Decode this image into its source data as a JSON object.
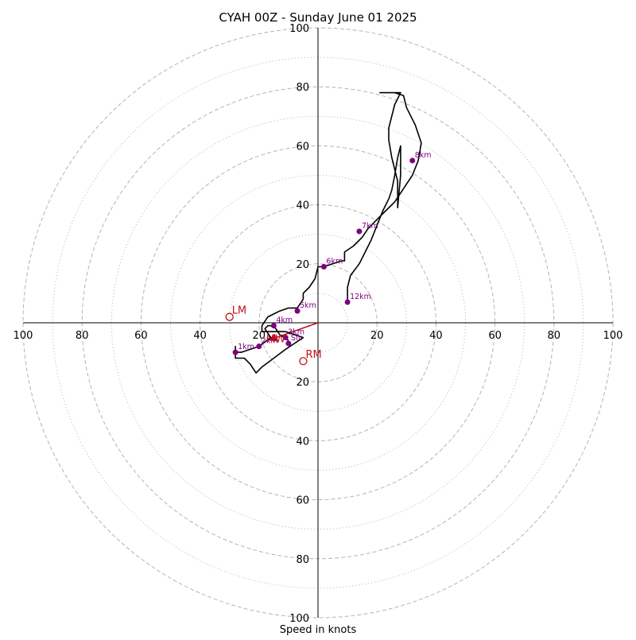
{
  "chart_data": {
    "type": "hodograph",
    "title": "CYAH 00Z - Sunday June 01 2025",
    "xlabel": "Speed in knots",
    "units": "knots",
    "range": [
      -100,
      100
    ],
    "ring_major": [
      20,
      40,
      60,
      80,
      100
    ],
    "ring_minor": [
      10,
      30,
      50,
      70,
      90
    ],
    "tick_labels": {
      "x": [
        "100",
        "80",
        "60",
        "40",
        "20",
        "20",
        "40",
        "60",
        "80",
        "100"
      ],
      "y": [
        "100",
        "80",
        "60",
        "40",
        "20",
        "20",
        "40",
        "60",
        "80",
        "100"
      ]
    },
    "grid": true,
    "colors": {
      "trace": "#000000",
      "height_marker": "#800080",
      "storm_motion": "#c0101a",
      "grid": "#b4b4b4"
    },
    "trace": [
      [
        -10,
        -6
      ],
      [
        -13,
        -4
      ],
      [
        -15,
        -1
      ],
      [
        -17,
        -1
      ],
      [
        -18,
        -2
      ],
      [
        -16,
        -5
      ],
      [
        -20,
        -8
      ],
      [
        -23,
        -9
      ],
      [
        -26,
        -10
      ],
      [
        -28,
        -10
      ],
      [
        -28,
        -8
      ],
      [
        -28,
        -12
      ],
      [
        -27,
        -12
      ],
      [
        -25,
        -12
      ],
      [
        -23,
        -14
      ],
      [
        -21,
        -17
      ],
      [
        -19,
        -15
      ],
      [
        -15,
        -12
      ],
      [
        -11,
        -9
      ],
      [
        -8,
        -7
      ],
      [
        -5,
        -5
      ],
      [
        -8,
        -4
      ],
      [
        -11,
        -3
      ],
      [
        -15,
        -3
      ],
      [
        -19,
        -3
      ],
      [
        -19,
        -1
      ],
      [
        -17,
        2
      ],
      [
        -15,
        3
      ],
      [
        -13,
        4
      ],
      [
        -10,
        5
      ],
      [
        -7,
        5
      ],
      [
        -5,
        8
      ],
      [
        -5,
        10
      ],
      [
        -3,
        12
      ],
      [
        -1,
        15
      ],
      [
        0,
        19
      ],
      [
        2,
        19
      ],
      [
        5,
        20
      ],
      [
        8,
        21
      ],
      [
        9,
        21
      ],
      [
        9,
        24
      ],
      [
        12,
        26
      ],
      [
        15,
        29
      ],
      [
        17,
        32
      ],
      [
        20,
        35
      ],
      [
        23,
        38
      ],
      [
        26,
        41
      ],
      [
        28,
        44
      ],
      [
        30,
        47
      ],
      [
        32,
        50
      ],
      [
        34,
        55
      ],
      [
        35,
        61
      ],
      [
        33,
        67
      ],
      [
        30,
        73
      ],
      [
        29,
        77
      ],
      [
        26,
        78
      ],
      [
        23,
        78
      ],
      [
        21,
        78
      ],
      [
        23,
        78
      ],
      [
        25,
        78
      ],
      [
        28,
        78
      ],
      [
        26,
        74
      ],
      [
        24,
        66
      ],
      [
        24,
        62
      ],
      [
        25,
        56
      ],
      [
        26,
        52
      ],
      [
        27,
        48
      ],
      [
        27,
        44
      ],
      [
        27,
        41
      ],
      [
        27,
        39
      ],
      [
        28,
        50
      ],
      [
        28,
        60
      ],
      [
        27,
        56
      ],
      [
        26,
        50
      ],
      [
        25,
        45
      ],
      [
        24,
        42
      ],
      [
        22,
        38
      ],
      [
        20,
        33
      ],
      [
        18,
        28
      ],
      [
        16,
        24
      ],
      [
        14,
        20
      ],
      [
        11,
        16
      ],
      [
        10,
        12
      ],
      [
        10,
        8
      ],
      [
        10,
        7
      ]
    ],
    "height_markers": [
      {
        "label": "Sfc",
        "u": -10,
        "v": -7
      },
      {
        "label": "1km",
        "u": -28,
        "v": -10
      },
      {
        "label": "2km",
        "u": -20,
        "v": -8
      },
      {
        "label": "3km",
        "u": -11,
        "v": -5
      },
      {
        "label": "4km",
        "u": -15,
        "v": -1
      },
      {
        "label": "5km",
        "u": -7,
        "v": 4
      },
      {
        "label": "6km",
        "u": 2,
        "v": 19
      },
      {
        "label": "7km",
        "u": 14,
        "v": 31
      },
      {
        "label": "8km",
        "u": 32,
        "v": 55
      },
      {
        "label": "12km",
        "u": 10,
        "v": 7
      }
    ],
    "storm_motions": [
      {
        "label": "LM",
        "u": -30,
        "v": 2
      },
      {
        "label": "RM",
        "u": -5,
        "v": -13
      }
    ],
    "mean_wind": {
      "label": "MW",
      "u": -17,
      "v": -6
    },
    "shear_vector": {
      "from": [
        0,
        0
      ],
      "to": [
        -17,
        -6
      ]
    }
  }
}
